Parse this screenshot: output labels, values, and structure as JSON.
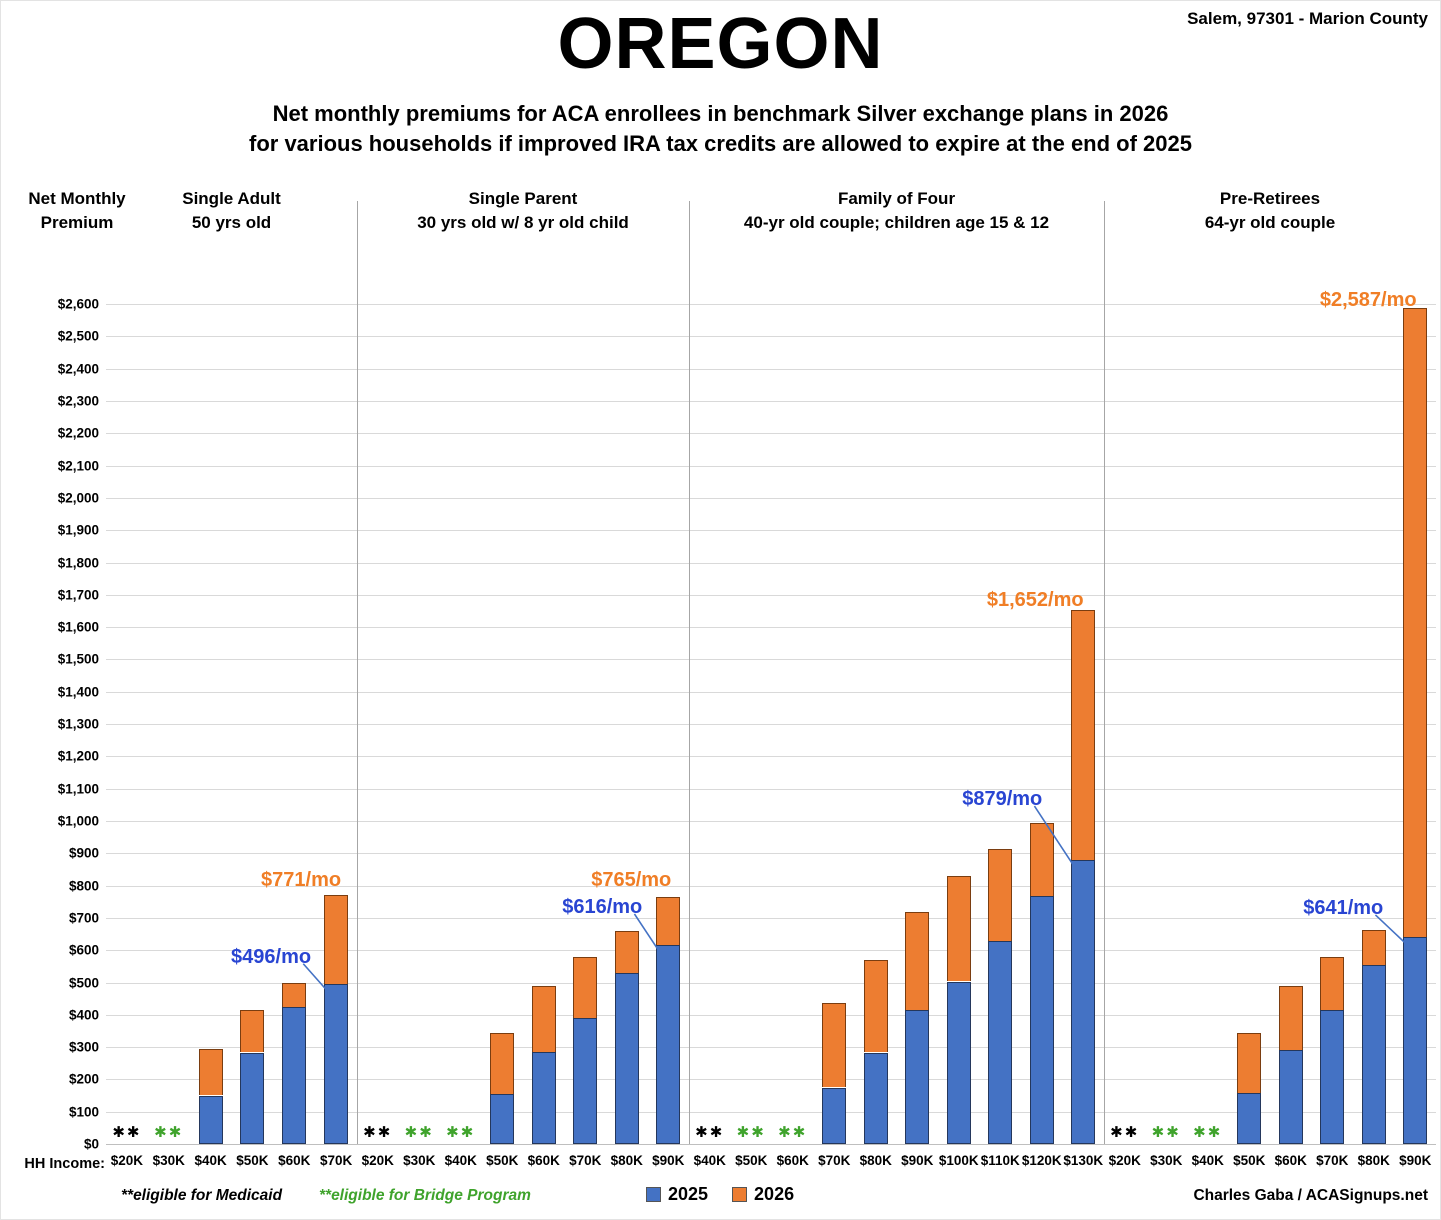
{
  "header": {
    "title": "OREGON",
    "location": "Salem, 97301 - Marion County",
    "subtitle_line1": "Net monthly premiums for ACA enrollees in benchmark Silver exchange plans in 2026",
    "subtitle_line2": "for various households if improved IRA tax credits are allowed to expire at the end of 2025"
  },
  "y_axis": {
    "title_line1": "Net Monthly",
    "title_line2": "Premium",
    "min": 0,
    "max": 2600,
    "step": 100,
    "tick_prefix": "$"
  },
  "x_axis": {
    "label": "HH Income:"
  },
  "legend": {
    "items": [
      {
        "label": "2025",
        "color": "#4472C4"
      },
      {
        "label": "2026",
        "color": "#ED7D31"
      }
    ]
  },
  "footnotes": {
    "medicaid": "**eligible for Medicaid",
    "bridge": "**eligible for Bridge Program"
  },
  "credit": "Charles Gaba / ACASignups.net",
  "markers": {
    "symbol": "✱✱",
    "medicaid_color": "#000000",
    "bridge_color": "#3fa32c"
  },
  "colors": {
    "bar_2025": "#4472C4",
    "bar_2026": "#ED7D31",
    "label_2025": "#2945D2",
    "label_2026": "#F07E26",
    "gridline": "#D9D9D9",
    "divider": "#A6A6A6"
  },
  "chart_data": {
    "type": "bar",
    "unit": "USD per month",
    "ylim": [
      0,
      2600
    ],
    "grid": true,
    "series_names": [
      "2025",
      "2026"
    ],
    "panels": [
      {
        "title": "Single Adult",
        "subtitle": "50 yrs old",
        "bars": [
          {
            "income": "$20K",
            "v2025": null,
            "v2026": null,
            "note": "medicaid"
          },
          {
            "income": "$30K",
            "v2025": null,
            "v2026": null,
            "note": "bridge"
          },
          {
            "income": "$40K",
            "v2025": 150,
            "v2026": 295
          },
          {
            "income": "$50K",
            "v2025": 283,
            "v2026": 415
          },
          {
            "income": "$60K",
            "v2025": 425,
            "v2026": 497
          },
          {
            "income": "$70K",
            "v2025": 496,
            "v2026": 771
          }
        ],
        "annotations": [
          {
            "text": "$496/mo",
            "series": "2025",
            "category": "$70K"
          },
          {
            "text": "$771/mo",
            "series": "2026",
            "category": "$70K"
          }
        ]
      },
      {
        "title": "Single Parent",
        "subtitle": "30 yrs old w/ 8 yr old child",
        "bars": [
          {
            "income": "$20K",
            "v2025": null,
            "v2026": null,
            "note": "medicaid"
          },
          {
            "income": "$30K",
            "v2025": null,
            "v2026": null,
            "note": "bridge"
          },
          {
            "income": "$40K",
            "v2025": null,
            "v2026": null,
            "note": "bridge"
          },
          {
            "income": "$50K",
            "v2025": 155,
            "v2026": 343
          },
          {
            "income": "$60K",
            "v2025": 285,
            "v2026": 490
          },
          {
            "income": "$70K",
            "v2025": 390,
            "v2026": 578
          },
          {
            "income": "$80K",
            "v2025": 530,
            "v2026": 660
          },
          {
            "income": "$90K",
            "v2025": 616,
            "v2026": 765
          }
        ],
        "annotations": [
          {
            "text": "$616/mo",
            "series": "2025",
            "category": "$90K"
          },
          {
            "text": "$765/mo",
            "series": "2026",
            "category": "$90K"
          }
        ]
      },
      {
        "title": "Family of Four",
        "subtitle": "40-yr old couple; children age 15 & 12",
        "bars": [
          {
            "income": "$40K",
            "v2025": null,
            "v2026": null,
            "note": "medicaid"
          },
          {
            "income": "$50K",
            "v2025": null,
            "v2026": null,
            "note": "bridge"
          },
          {
            "income": "$60K",
            "v2025": null,
            "v2026": null,
            "note": "bridge"
          },
          {
            "income": "$70K",
            "v2025": 175,
            "v2026": 437
          },
          {
            "income": "$80K",
            "v2025": 283,
            "v2026": 570
          },
          {
            "income": "$90K",
            "v2025": 415,
            "v2026": 718
          },
          {
            "income": "$100K",
            "v2025": 503,
            "v2026": 830
          },
          {
            "income": "$110K",
            "v2025": 628,
            "v2026": 912
          },
          {
            "income": "$120K",
            "v2025": 768,
            "v2026": 995
          },
          {
            "income": "$130K",
            "v2025": 879,
            "v2026": 1652
          }
        ],
        "annotations": [
          {
            "text": "$879/mo",
            "series": "2025",
            "category": "$130K"
          },
          {
            "text": "$1,652/mo",
            "series": "2026",
            "category": "$130K"
          }
        ]
      },
      {
        "title": "Pre-Retirees",
        "subtitle": "64-yr old couple",
        "bars": [
          {
            "income": "$20K",
            "v2025": null,
            "v2026": null,
            "note": "medicaid"
          },
          {
            "income": "$30K",
            "v2025": null,
            "v2026": null,
            "note": "bridge"
          },
          {
            "income": "$40K",
            "v2025": null,
            "v2026": null,
            "note": "bridge"
          },
          {
            "income": "$50K",
            "v2025": 158,
            "v2026": 343
          },
          {
            "income": "$60K",
            "v2025": 290,
            "v2026": 490
          },
          {
            "income": "$70K",
            "v2025": 415,
            "v2026": 578
          },
          {
            "income": "$80K",
            "v2025": 555,
            "v2026": 662
          },
          {
            "income": "$90K",
            "v2025": 641,
            "v2026": 2587
          }
        ],
        "annotations": [
          {
            "text": "$641/mo",
            "series": "2025",
            "category": "$90K"
          },
          {
            "text": "$2,587/mo",
            "series": "2026",
            "category": "$90K"
          }
        ]
      }
    ]
  }
}
